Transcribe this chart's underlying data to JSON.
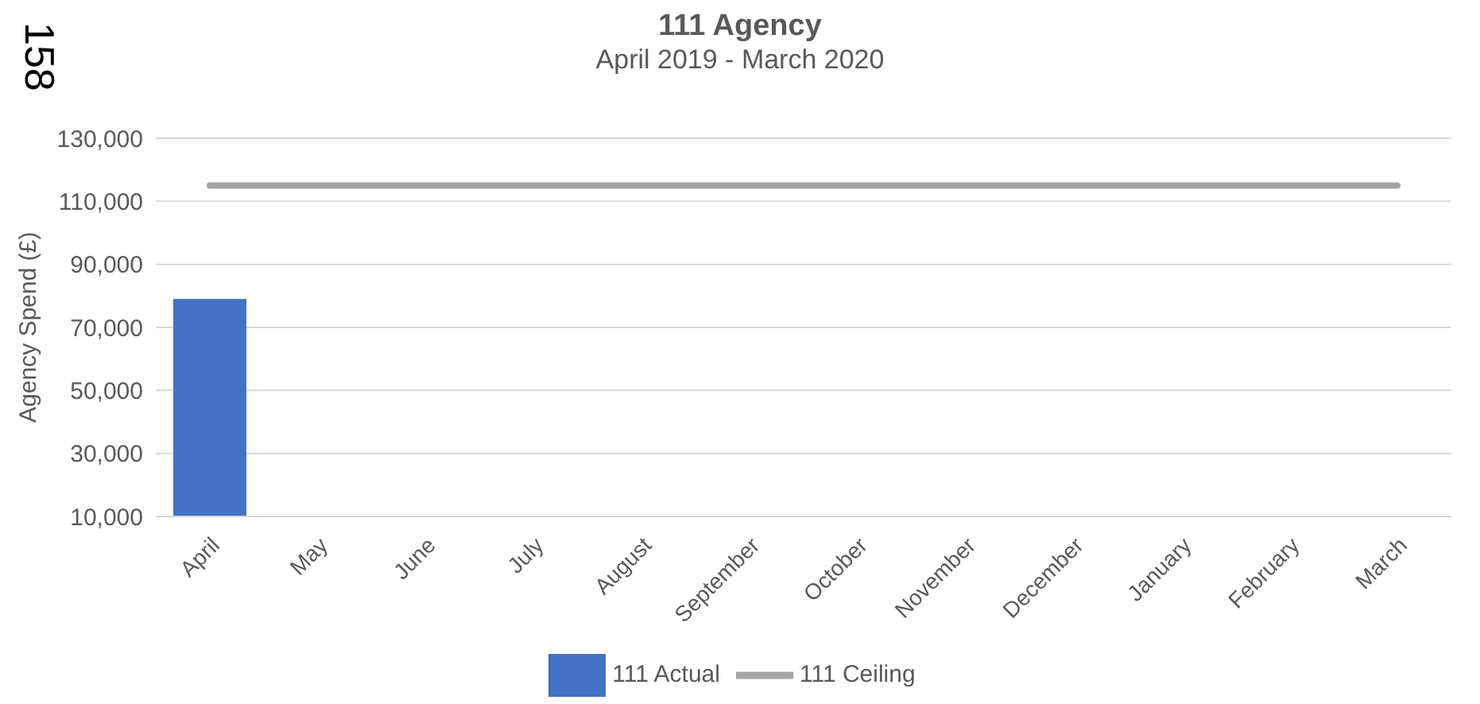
{
  "chart_data": {
    "type": "bar",
    "title": "111 Agency",
    "subtitle": "April 2019 - March 2020",
    "ylabel": "Agency Spend (£)",
    "annotations": [
      "158"
    ],
    "categories": [
      "April",
      "May",
      "June",
      "July",
      "August",
      "September",
      "October",
      "November",
      "December",
      "January",
      "February",
      "March"
    ],
    "series": [
      {
        "name": "111 Actual",
        "color": "#4472c4",
        "values": [
          79000,
          null,
          null,
          null,
          null,
          null,
          null,
          null,
          null,
          null,
          null,
          null
        ]
      },
      {
        "name": "111 Ceiling",
        "type": "line",
        "color": "#a5a5a5",
        "values": [
          115000,
          115000,
          115000,
          115000,
          115000,
          115000,
          115000,
          115000,
          115000,
          115000,
          115000,
          115000
        ]
      }
    ],
    "ylim": [
      10000,
      130000
    ],
    "yticks": [
      {
        "value": 10000,
        "label": "10,000"
      },
      {
        "value": 30000,
        "label": "30,000"
      },
      {
        "value": 50000,
        "label": "50,000"
      },
      {
        "value": 70000,
        "label": "70,000"
      },
      {
        "value": 90000,
        "label": "90,000"
      },
      {
        "value": 110000,
        "label": "110,000"
      },
      {
        "value": 130000,
        "label": "130,000"
      }
    ],
    "grid": "y",
    "legend": "bottom",
    "marker": "none"
  }
}
